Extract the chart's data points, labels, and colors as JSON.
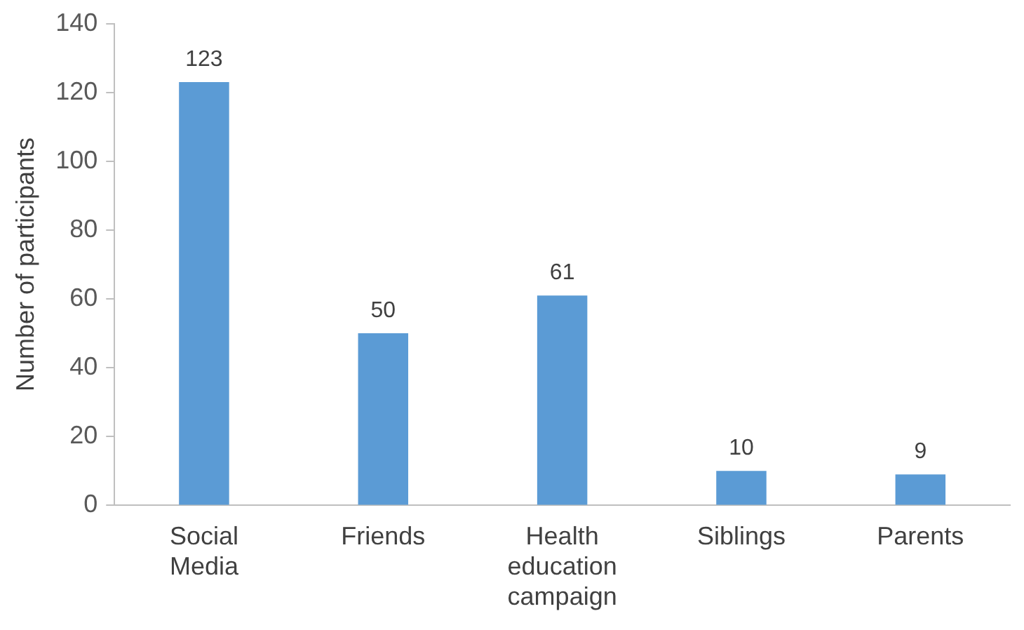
{
  "chart_data": {
    "type": "bar",
    "ylabel": "Number of participants",
    "categories": [
      "Social Media",
      "Friends",
      "Health education campaign",
      "Siblings",
      "Parents"
    ],
    "values": [
      123,
      50,
      61,
      10,
      9
    ],
    "color": "#5b9bd5",
    "ylim": [
      0,
      140
    ],
    "yticks": [
      0,
      20,
      40,
      60,
      80,
      100,
      120,
      140
    ],
    "grid": false,
    "legend": false,
    "data_labels": true
  }
}
